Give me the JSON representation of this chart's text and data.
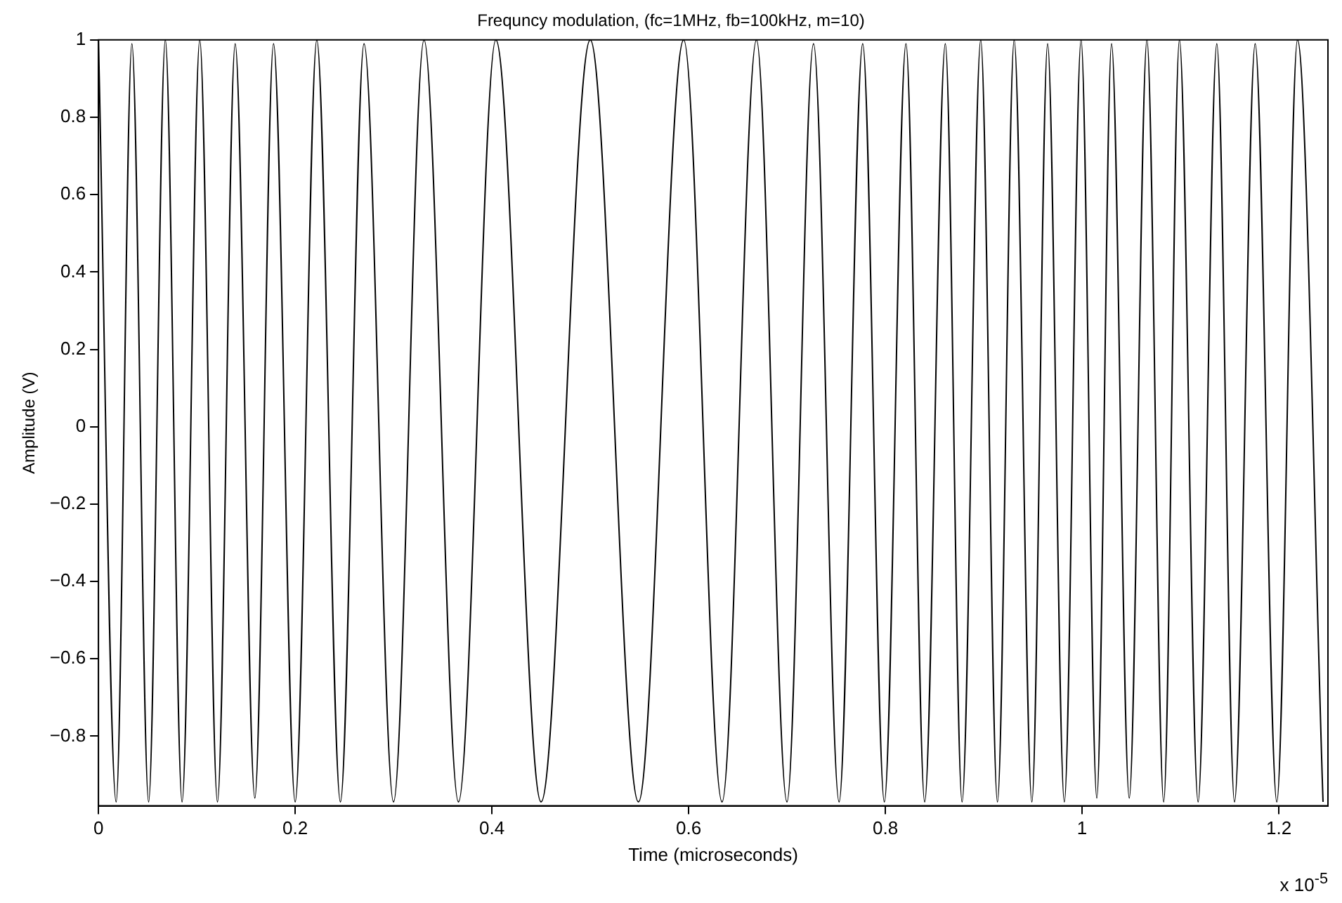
{
  "chart_data": {
    "type": "line",
    "title": "Frequncy modulation, (fc=1MHz, fb=100kHz, m=10)",
    "xlabel": "Time (microseconds)",
    "ylabel": "Amplitude (V)",
    "annotations": [
      "x 10$^{-5}$"
    ],
    "x": [
      0,
      0.018,
      0.034,
      0.051,
      0.068,
      0.085,
      0.103,
      0.121,
      0.139,
      0.159,
      0.178,
      0.2,
      0.222,
      0.246,
      0.27,
      0.3,
      0.331,
      0.366,
      0.404,
      0.45,
      0.5,
      0.549,
      0.595,
      0.634,
      0.669,
      0.7,
      0.727,
      0.753,
      0.777,
      0.799,
      0.821,
      0.84,
      0.861,
      0.878,
      0.897,
      0.914,
      0.931,
      0.949,
      0.965,
      0.982,
      0.999,
      1.015,
      1.03,
      1.048,
      1.066,
      1.083,
      1.099,
      1.118,
      1.137,
      1.155,
      1.176,
      1.198,
      1.219,
      1.245
    ],
    "series": [
      {
        "color": "#000000",
        "values": [
          1,
          -0.97,
          0.99,
          -0.97,
          1,
          -0.97,
          1,
          -0.97,
          0.99,
          -0.96,
          0.99,
          -0.97,
          1,
          -0.97,
          0.99,
          -0.97,
          1,
          -0.97,
          1,
          -0.97,
          1,
          -0.97,
          1,
          -0.97,
          1,
          -0.97,
          0.99,
          -0.97,
          0.99,
          -0.97,
          0.99,
          -0.97,
          0.99,
          -0.97,
          1,
          -0.97,
          1,
          -0.97,
          0.99,
          -0.97,
          1,
          -0.96,
          0.99,
          -0.96,
          1,
          -0.97,
          1,
          -0.97,
          0.99,
          -0.97,
          0.99,
          -0.97,
          1,
          -0.97
        ]
      }
    ],
    "xlim": [
      0,
      1.25
    ],
    "xticks": [
      0,
      0.2,
      0.4,
      0.6,
      0.8,
      1,
      1.2
    ],
    "ylim": [
      -0.98,
      1
    ],
    "yticks": [
      -0.8,
      -0.6,
      -0.4,
      -0.2,
      0,
      0.2,
      0.4,
      0.6,
      0.8,
      1
    ],
    "grid": false,
    "legend": false,
    "marker": "none",
    "line_style": "solid"
  }
}
